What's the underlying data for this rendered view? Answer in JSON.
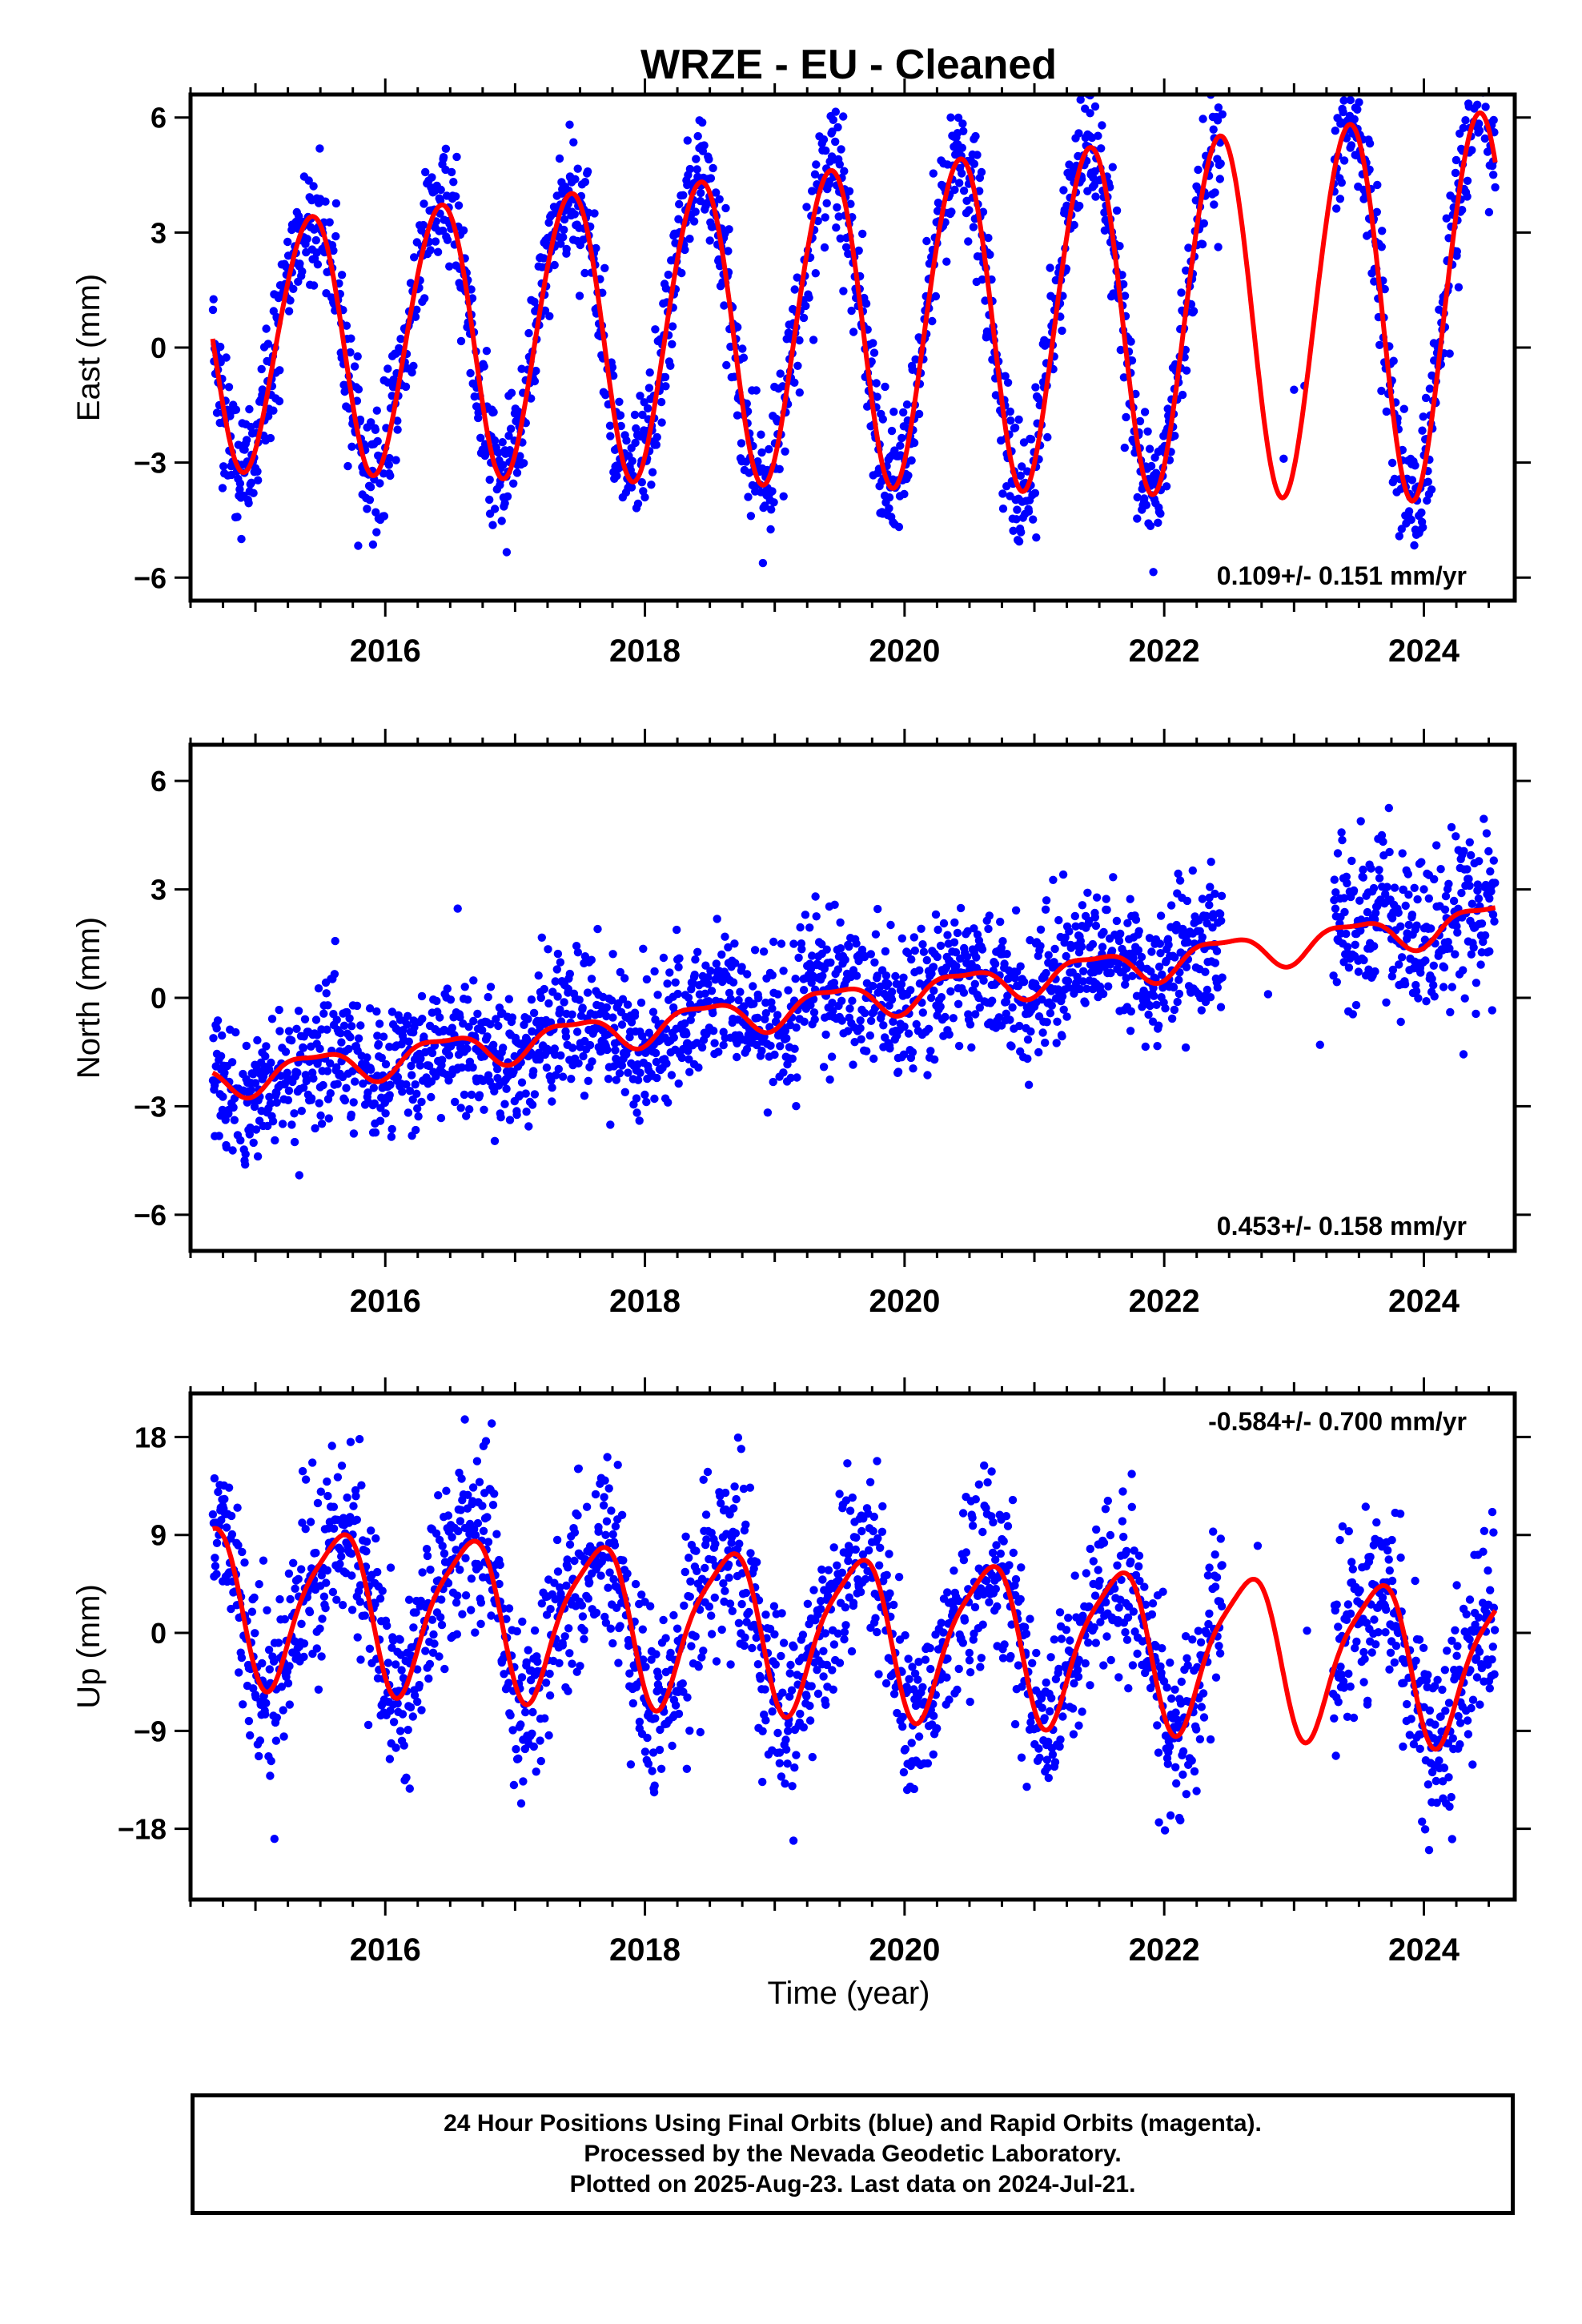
{
  "figure": {
    "title": "WRZE  - EU - Cleaned",
    "xlabel": "Time (year)",
    "footer": [
      "24 Hour Positions Using Final Orbits (blue) and Rapid Orbits (magenta).",
      "Processed by the Nevada Geodetic Laboratory.",
      "Plotted on 2025-Aug-23. Last data on 2024-Jul-21."
    ],
    "colors": {
      "points": "#0000ff",
      "model": "#ff0000",
      "frame": "#000000"
    }
  },
  "chart_data": [
    {
      "type": "scatter",
      "component": "East",
      "ylabel": "East (mm)",
      "rate_label": "0.109+/- 0.151 mm/yr",
      "rate_position": "bottom-right",
      "xlim": [
        2014.5,
        2024.7
      ],
      "ylim": [
        -6.6,
        6.6
      ],
      "xticks": [
        2016,
        2018,
        2020,
        2022,
        2024
      ],
      "yticks": [
        -6,
        -3,
        0,
        3,
        6
      ],
      "grid": false,
      "model": {
        "offset": 0.1,
        "rate_mm_per_yr": 0.109,
        "annual_amplitude": 3.2,
        "annual_peak_year_fraction": 0.42,
        "semiannual_amplitude": 0.2,
        "semiannual_phase_year_fraction": 0.1,
        "amplitude_growth_per_yr": 0.06,
        "noise_sd": 0.85
      },
      "observation_gaps": [
        [
          2022.45,
          2023.3
        ]
      ],
      "sparse_points_in_gaps": [
        [
          2022.92,
          -2.9
        ],
        [
          2023.0,
          -1.1
        ],
        [
          2023.08,
          -1.0
        ]
      ],
      "points_shown": 2400,
      "series": [
        {
          "name": "Final Orbits (blue)",
          "style": "points"
        },
        {
          "name": "model fit",
          "style": "line"
        }
      ]
    },
    {
      "type": "scatter",
      "component": "North",
      "ylabel": "North (mm)",
      "rate_label": "0.453+/- 0.158 mm/yr",
      "rate_position": "bottom-right",
      "xlim": [
        2014.5,
        2024.7
      ],
      "ylim": [
        -7.0,
        7.0
      ],
      "xticks": [
        2016,
        2018,
        2020,
        2022,
        2024
      ],
      "yticks": [
        -6,
        -3,
        0,
        3,
        6
      ],
      "grid": false,
      "model": {
        "offset": -2.3,
        "rate_mm_per_yr": 0.453,
        "annual_amplitude": 0.45,
        "annual_peak_year_fraction": 0.45,
        "semiannual_amplitude": 0.15,
        "semiannual_phase_year_fraction": 0.2,
        "amplitude_growth_per_yr": 0.0,
        "noise_sd": 0.95
      },
      "observation_gaps": [
        [
          2022.45,
          2023.3
        ]
      ],
      "sparse_points_in_gaps": [
        [
          2022.8,
          0.1
        ],
        [
          2023.2,
          -1.3
        ]
      ],
      "points_shown": 2400,
      "series": [
        {
          "name": "Final Orbits (blue)",
          "style": "points"
        },
        {
          "name": "model fit",
          "style": "line"
        }
      ]
    },
    {
      "type": "scatter",
      "component": "Up",
      "ylabel": "Up (mm)",
      "rate_label": "-0.584+/- 0.700 mm/yr",
      "rate_position": "top-right",
      "xlim": [
        2014.5,
        2024.7
      ],
      "ylim": [
        -24.5,
        22.0
      ],
      "xticks": [
        2016,
        2018,
        2020,
        2022,
        2024
      ],
      "yticks": [
        -18,
        -9,
        0,
        9,
        18
      ],
      "grid": false,
      "model": {
        "offset": 3.0,
        "rate_mm_per_yr": -0.584,
        "annual_amplitude": 7.0,
        "annual_peak_year_fraction": 0.62,
        "semiannual_amplitude": 1.5,
        "semiannual_phase_year_fraction": 0.3,
        "amplitude_growth_per_yr": 0.0,
        "noise_sd": 4.2
      },
      "observation_gaps": [
        [
          2022.45,
          2023.3
        ]
      ],
      "sparse_points_in_gaps": [
        [
          2022.72,
          8.0
        ],
        [
          2023.1,
          0.2
        ]
      ],
      "points_shown": 2400,
      "series": [
        {
          "name": "Final Orbits (blue)",
          "style": "points"
        },
        {
          "name": "model fit",
          "style": "line"
        }
      ]
    }
  ]
}
